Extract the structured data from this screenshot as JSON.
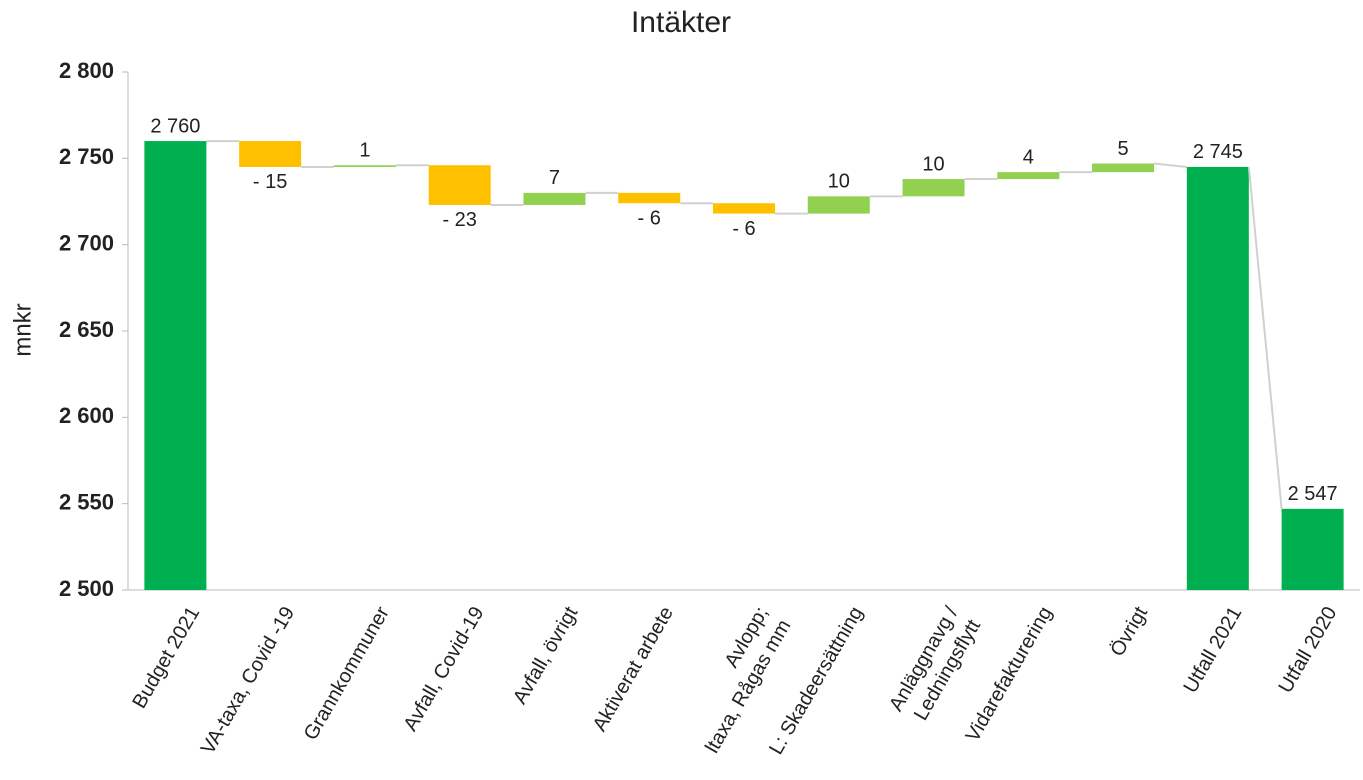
{
  "chart_data": {
    "type": "waterfall",
    "title": "Intäkter",
    "y_label": "mnkr",
    "categories": [
      "Budget 2021",
      "VA-taxa, Covid -19",
      "Grannkommuner",
      "Avfall, Covid-19",
      "Avfall, övrigt",
      "Aktiverat arbete",
      "Avlopp;\nltaxa, Rågas mm",
      "L: Skadeersättning",
      "Anläggnavg /\nLedningsflytt",
      "Vidarefakturering",
      "Övrigt",
      "Utfall 2021",
      "Utfall 2020"
    ],
    "values": [
      2760,
      -15,
      1,
      -23,
      7,
      -6,
      -6,
      10,
      10,
      4,
      5,
      2745,
      2547
    ],
    "value_labels": [
      "2 760",
      "- 15",
      "1",
      "- 23",
      "7",
      "- 6",
      "- 6",
      "10",
      "10",
      "4",
      "5",
      "2 745",
      "2 547"
    ],
    "total_indices": [
      0,
      11,
      12
    ],
    "colors": {
      "total": "#00b050",
      "increase": "#92d050",
      "decrease": "#ffc000"
    },
    "ylim": [
      2500,
      2800
    ],
    "yticks": [
      {
        "value": 2500,
        "label": "2 500"
      },
      {
        "value": 2550,
        "label": "2 550"
      },
      {
        "value": 2600,
        "label": "2 600"
      },
      {
        "value": 2650,
        "label": "2 650"
      },
      {
        "value": 2700,
        "label": "2 700"
      },
      {
        "value": 2750,
        "label": "2 750"
      },
      {
        "value": 2800,
        "label": "2 800"
      }
    ]
  }
}
